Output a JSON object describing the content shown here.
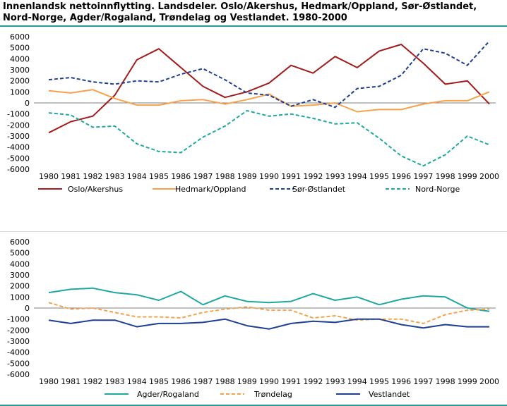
{
  "title": "Innenlandsk nettoinnflytting. Landsdeler. Oslo/Akershus, Hedmark/Oppland, Sør-Østlandet, Nord-Norge, Agder/Rogaland, Trøndelag og Vestlandet. 1980-2000",
  "colors": {
    "oslo": "#a31b1b",
    "hedmark": "#f7a24a",
    "sor": "#1e3f94",
    "nord": "#1ea8a0",
    "agder": "#1ea8a0",
    "trondelag": "#f7a24a",
    "vestlandet": "#1e3f94",
    "rule": "#2a9a96"
  },
  "chart_data": [
    {
      "type": "line",
      "categories": [
        "1980",
        "1981",
        "1982",
        "1983",
        "1984",
        "1985",
        "1986",
        "1987",
        "1988",
        "1989",
        "1990",
        "1991",
        "1992",
        "1993",
        "1994",
        "1995",
        "1996",
        "1997",
        "1998",
        "1999",
        "2000"
      ],
      "ylim": [
        -6000,
        6000
      ],
      "yticks": [
        "6000",
        "5000",
        "4000",
        "3000",
        "2000",
        "1000",
        "0",
        "-1000",
        "-2000",
        "-3000",
        "-4000",
        "-5000",
        "-6000"
      ],
      "series": [
        {
          "name": "Oslo/Akershus",
          "key": "oslo",
          "dash": false,
          "values": [
            -2700,
            -1700,
            -1200,
            700,
            3900,
            4900,
            3200,
            1500,
            500,
            1000,
            1800,
            3400,
            2700,
            4200,
            3200,
            4700,
            5300,
            3600,
            1700,
            2000,
            -100
          ]
        },
        {
          "name": "Hedmark/Oppland",
          "key": "hedmark",
          "dash": false,
          "values": [
            1100,
            900,
            1200,
            400,
            -200,
            -200,
            200,
            300,
            -100,
            300,
            800,
            -300,
            -200,
            0,
            -800,
            -600,
            -600,
            -100,
            200,
            200,
            1000
          ]
        },
        {
          "name": "Sør-Østlandet",
          "key": "sor",
          "dash": true,
          "values": [
            2100,
            2300,
            1900,
            1700,
            2000,
            1900,
            2600,
            3100,
            2100,
            900,
            700,
            -300,
            300,
            -400,
            1300,
            1500,
            2500,
            4900,
            4500,
            3400,
            5600
          ]
        },
        {
          "name": "Nord-Norge",
          "key": "nord",
          "dash": true,
          "values": [
            -900,
            -1100,
            -2200,
            -2100,
            -3700,
            -4400,
            -4500,
            -3100,
            -2100,
            -700,
            -1200,
            -1000,
            -1400,
            -1900,
            -1800,
            -3200,
            -4800,
            -5700,
            -4700,
            -3000,
            -3800
          ]
        }
      ]
    },
    {
      "type": "line",
      "categories": [
        "1980",
        "1981",
        "1982",
        "1983",
        "1984",
        "1985",
        "1986",
        "1987",
        "1988",
        "1989",
        "1990",
        "1991",
        "1992",
        "1993",
        "1994",
        "1995",
        "1996",
        "1997",
        "1998",
        "1999",
        "2000"
      ],
      "ylim": [
        -6000,
        6000
      ],
      "yticks": [
        "6000",
        "5000",
        "4000",
        "3000",
        "2000",
        "1000",
        "0",
        "-1000",
        "-2000",
        "-3000",
        "-4000",
        "-5000",
        "-6000"
      ],
      "series": [
        {
          "name": "Agder/Rogaland",
          "key": "agder",
          "dash": false,
          "values": [
            1400,
            1700,
            1800,
            1400,
            1200,
            700,
            1500,
            300,
            1100,
            600,
            500,
            600,
            1300,
            700,
            1000,
            300,
            800,
            1100,
            1000,
            0,
            -300
          ]
        },
        {
          "name": "Trøndelag",
          "key": "trondelag",
          "dash": true,
          "values": [
            500,
            -100,
            0,
            -400,
            -800,
            -800,
            -900,
            -400,
            -100,
            100,
            -200,
            -200,
            -900,
            -700,
            -1100,
            -1000,
            -1000,
            -1400,
            -600,
            -200,
            -100
          ]
        },
        {
          "name": "Vestlandet",
          "key": "vestlandet",
          "dash": false,
          "values": [
            -1100,
            -1400,
            -1100,
            -1100,
            -1700,
            -1400,
            -1400,
            -1300,
            -1000,
            -1600,
            -1900,
            -1400,
            -1200,
            -1300,
            -1000,
            -1000,
            -1500,
            -1800,
            -1500,
            -1700,
            -1700
          ]
        }
      ]
    }
  ]
}
